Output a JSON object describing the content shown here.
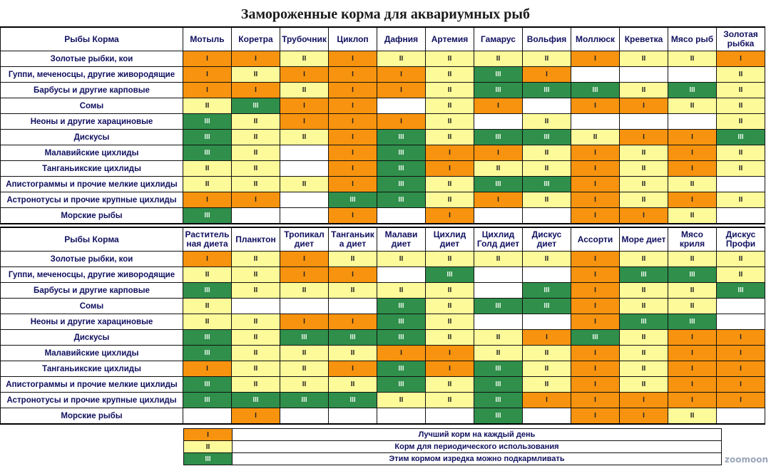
{
  "title": "Замороженные корма для аквариумных рыб",
  "corner_label": "Рыбы    Корма",
  "levels": {
    "1": "I",
    "2": "II",
    "3": "III"
  },
  "colors": {
    "best_daily": "#f7930e",
    "periodic": "#fdfa9a",
    "occasional": "#2f8f4b",
    "none": "#ffffff"
  },
  "fish": [
    "Золотые рыбки, кои",
    "Гуппи, меченосцы, другие живородящие",
    "Барбусы  и другие карповые",
    "Сомы",
    "Неоны и другие харациновые",
    "Дискусы",
    "Малавийские цихлиды",
    "Танганьикские цихлиды",
    "Апистограммы и прочие мелкие цихлиды",
    "Астронотусы и прочие крупные цихлиды",
    "Морские рыбы"
  ],
  "frozen": {
    "columns": [
      "Мотыль",
      "Коретра",
      "Трубочник",
      "Циклоп",
      "Дафния",
      "Артемия",
      "Гамарус",
      "Вольфия",
      "Моллюск",
      "Креветка",
      "Мясо рыб",
      "Золотая рыбка"
    ],
    "rows": [
      [
        1,
        1,
        2,
        1,
        2,
        2,
        2,
        2,
        1,
        2,
        2,
        1
      ],
      [
        1,
        2,
        1,
        1,
        1,
        2,
        3,
        1,
        0,
        0,
        0,
        2
      ],
      [
        1,
        1,
        2,
        1,
        1,
        2,
        3,
        3,
        3,
        2,
        3,
        2
      ],
      [
        2,
        3,
        1,
        1,
        0,
        2,
        1,
        0,
        1,
        1,
        2,
        2
      ],
      [
        3,
        2,
        1,
        1,
        1,
        2,
        0,
        2,
        0,
        0,
        0,
        2
      ],
      [
        3,
        2,
        2,
        1,
        3,
        2,
        3,
        3,
        2,
        1,
        1,
        3
      ],
      [
        3,
        2,
        0,
        1,
        3,
        1,
        1,
        2,
        1,
        2,
        1,
        2
      ],
      [
        2,
        2,
        0,
        1,
        3,
        1,
        2,
        2,
        1,
        2,
        1,
        2
      ],
      [
        2,
        2,
        2,
        1,
        3,
        2,
        3,
        3,
        1,
        2,
        2,
        0
      ],
      [
        1,
        1,
        0,
        3,
        3,
        2,
        1,
        2,
        1,
        2,
        1,
        2
      ],
      [
        3,
        0,
        0,
        1,
        0,
        1,
        0,
        0,
        1,
        1,
        2,
        0
      ]
    ]
  },
  "dry": {
    "columns": [
      "Раститель ная диета",
      "Планктон",
      "Тропикал диет",
      "Танганьик а диет",
      "Малави диет",
      "Цихлид диет",
      "Цихлид Голд диет",
      "Дискус диет",
      "Ассорти",
      "Море диет",
      "Мясо криля",
      "Дискус Профи"
    ],
    "rows": [
      [
        1,
        2,
        1,
        2,
        2,
        2,
        2,
        2,
        1,
        2,
        2,
        2
      ],
      [
        2,
        2,
        1,
        1,
        0,
        3,
        0,
        0,
        1,
        3,
        3,
        2
      ],
      [
        3,
        2,
        2,
        2,
        2,
        2,
        0,
        3,
        1,
        2,
        2,
        3
      ],
      [
        2,
        0,
        0,
        0,
        3,
        2,
        3,
        3,
        1,
        2,
        2,
        0
      ],
      [
        2,
        2,
        1,
        1,
        3,
        2,
        0,
        0,
        1,
        3,
        3,
        0
      ],
      [
        3,
        2,
        3,
        3,
        3,
        2,
        2,
        1,
        3,
        2,
        1,
        1
      ],
      [
        3,
        2,
        2,
        2,
        1,
        1,
        2,
        2,
        1,
        2,
        1,
        1
      ],
      [
        1,
        2,
        2,
        1,
        3,
        1,
        3,
        2,
        1,
        2,
        1,
        1
      ],
      [
        3,
        2,
        2,
        2,
        3,
        2,
        3,
        2,
        1,
        2,
        1,
        1
      ],
      [
        3,
        3,
        3,
        3,
        2,
        2,
        3,
        1,
        1,
        1,
        1,
        1
      ],
      [
        0,
        1,
        0,
        0,
        0,
        0,
        3,
        0,
        1,
        1,
        2,
        0
      ]
    ]
  },
  "legend": [
    {
      "level": "I",
      "text": "Лучший корм на каждый день"
    },
    {
      "level": "II",
      "text": "Корм для периодического использования"
    },
    {
      "level": "III",
      "text": "Этим кормом изредка можно подкармливать"
    }
  ],
  "watermark": "zoomoon"
}
